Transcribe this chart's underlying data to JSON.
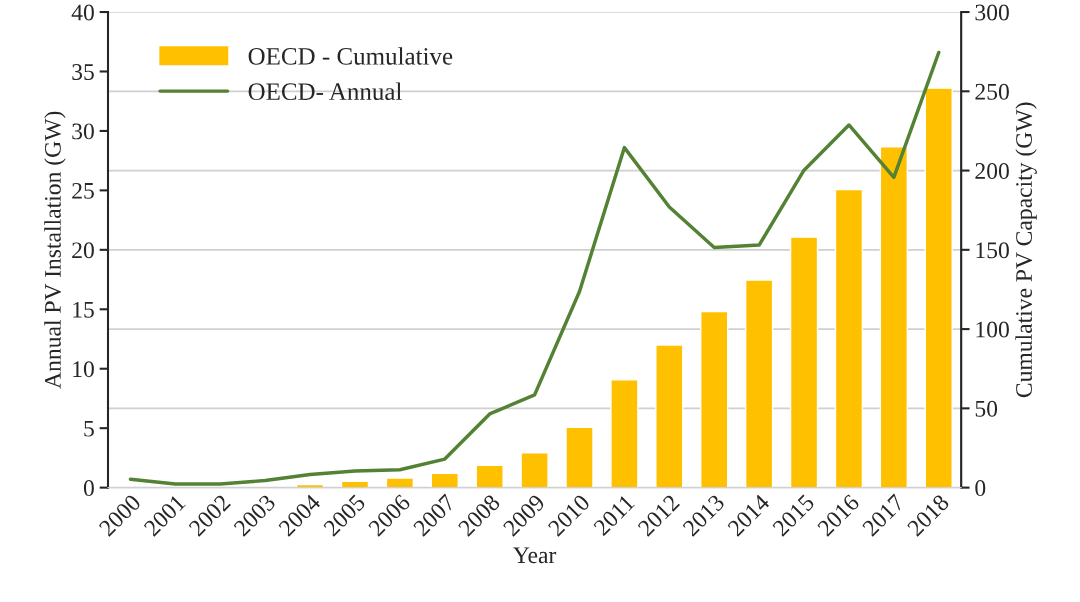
{
  "chart_data": {
    "type": "bar",
    "xlabel": "Year",
    "ylabel": "Annual PV Installation (GW)",
    "y2label": "Cumulative PV Capacity (GW)",
    "categories": [
      "2000",
      "2001",
      "2002",
      "2003",
      "2004",
      "2005",
      "2006",
      "2007",
      "2008",
      "2009",
      "2010",
      "2011",
      "2012",
      "2013",
      "2014",
      "2015",
      "2016",
      "2017",
      "2018"
    ],
    "series": [
      {
        "name": "OECD - Cumulative",
        "axis": "y2",
        "color": "#ffc000",
        "values": [
          null,
          null,
          null,
          null,
          2,
          4,
          6,
          9,
          14,
          22,
          38,
          68,
          90,
          111,
          131,
          158,
          188,
          215,
          252
        ]
      },
      {
        "name": "OECD- Annual",
        "type": "line",
        "color": "#548235",
        "values": [
          0.7,
          0.3,
          0.3,
          0.6,
          1.1,
          1.4,
          1.5,
          2.4,
          6.2,
          7.8,
          16.5,
          28.6,
          23.6,
          20.2,
          20.4,
          26.7,
          30.5,
          26.1,
          36.6
        ]
      }
    ],
    "ylim": [
      0,
      40
    ],
    "yticks": [
      0,
      5,
      10,
      15,
      20,
      25,
      30,
      35,
      40
    ],
    "y2lim": [
      0,
      300
    ],
    "y2ticks": [
      0,
      50,
      100,
      150,
      200,
      250,
      300
    ],
    "grid": "y2",
    "legend": "top left"
  }
}
